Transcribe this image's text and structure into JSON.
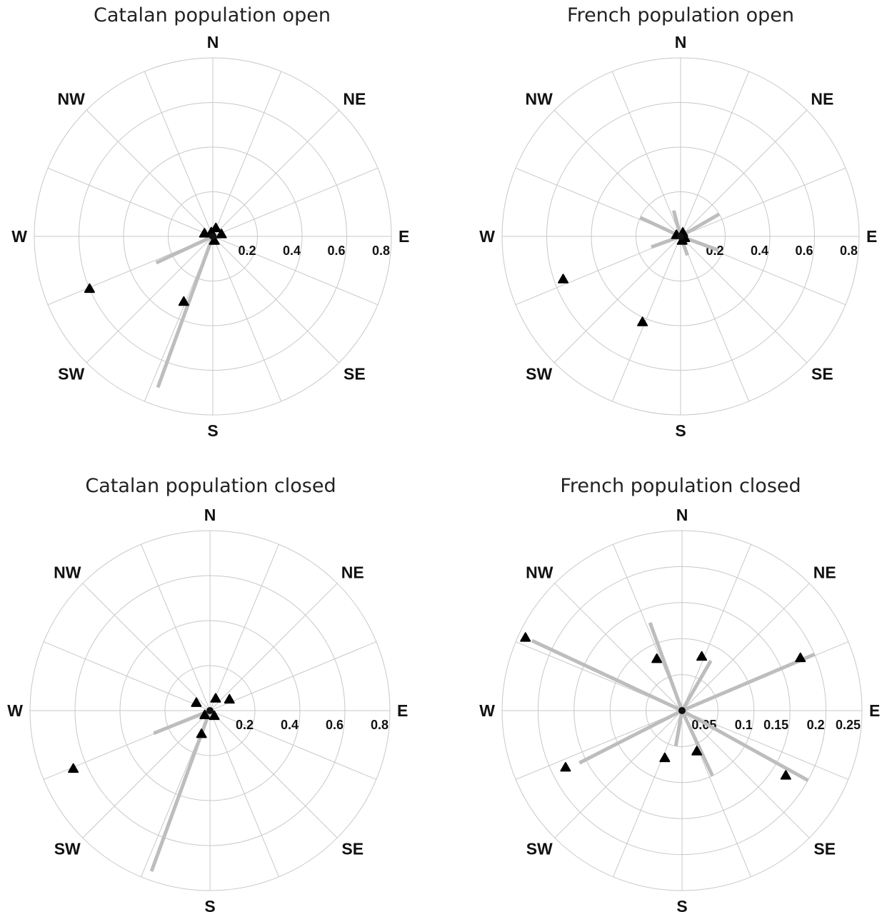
{
  "chart_data": [
    {
      "type": "polar",
      "title": "Catalan population open",
      "directions": [
        "N",
        "NE",
        "E",
        "SE",
        "S",
        "SW",
        "W",
        "NW"
      ],
      "rlim": [
        0,
        0.8
      ],
      "rticks": [
        "0.2",
        "0.4",
        "0.6",
        "0.8"
      ],
      "grid": true,
      "vectors": [
        {
          "angle_deg": 200,
          "r": 0.72
        },
        {
          "angle_deg": 245,
          "r": 0.28
        }
      ],
      "markers": [
        {
          "angle_deg": 247,
          "r": 0.6
        },
        {
          "angle_deg": 204,
          "r": 0.32
        },
        {
          "angle_deg": 20,
          "r": 0.04
        },
        {
          "angle_deg": 290,
          "r": 0.04
        },
        {
          "angle_deg": 75,
          "r": 0.04
        },
        {
          "angle_deg": 160,
          "r": 0.02
        },
        {
          "angle_deg": 340,
          "r": 0.02
        }
      ]
    },
    {
      "type": "polar",
      "title": "French population open",
      "directions": [
        "N",
        "NE",
        "E",
        "SE",
        "S",
        "SW",
        "W",
        "NW"
      ],
      "rlim": [
        0,
        0.8
      ],
      "rticks": [
        "0.2",
        "0.4",
        "0.6",
        "0.8"
      ],
      "grid": true,
      "vectors": [
        {
          "angle_deg": 345,
          "r": 0.12
        },
        {
          "angle_deg": 60,
          "r": 0.2
        },
        {
          "angle_deg": 110,
          "r": 0.18
        },
        {
          "angle_deg": 160,
          "r": 0.09
        },
        {
          "angle_deg": 250,
          "r": 0.14
        },
        {
          "angle_deg": 295,
          "r": 0.2
        }
      ],
      "markers": [
        {
          "angle_deg": 250,
          "r": 0.56
        },
        {
          "angle_deg": 204,
          "r": 0.42
        },
        {
          "angle_deg": 30,
          "r": 0.02
        },
        {
          "angle_deg": 110,
          "r": 0.02
        },
        {
          "angle_deg": 160,
          "r": 0.02
        },
        {
          "angle_deg": 290,
          "r": 0.02
        }
      ]
    },
    {
      "type": "polar",
      "title": "Catalan population closed",
      "directions": [
        "N",
        "NE",
        "E",
        "SE",
        "S",
        "SW",
        "W",
        "NW"
      ],
      "rlim": [
        0,
        0.8
      ],
      "rticks": [
        "0.2",
        "0.4",
        "0.6",
        "0.8"
      ],
      "grid": true,
      "vectors": [
        {
          "angle_deg": 200,
          "r": 0.76
        },
        {
          "angle_deg": 248,
          "r": 0.27
        }
      ],
      "markers": [
        {
          "angle_deg": 247,
          "r": 0.66
        },
        {
          "angle_deg": 200,
          "r": 0.11
        },
        {
          "angle_deg": 60,
          "r": 0.1
        },
        {
          "angle_deg": 300,
          "r": 0.07
        },
        {
          "angle_deg": 25,
          "r": 0.06
        },
        {
          "angle_deg": 140,
          "r": 0.03
        },
        {
          "angle_deg": 230,
          "r": 0.03
        }
      ]
    },
    {
      "type": "polar",
      "title": "French population closed",
      "directions": [
        "N",
        "NE",
        "E",
        "SE",
        "S",
        "SW",
        "W",
        "NW"
      ],
      "rlim": [
        0,
        0.25
      ],
      "rticks": [
        "0.05",
        "0.1",
        "0.15",
        "0.2",
        "0.25"
      ],
      "grid": true,
      "vectors": [
        {
          "angle_deg": 295,
          "r": 0.23
        },
        {
          "angle_deg": 67,
          "r": 0.2
        },
        {
          "angle_deg": 119,
          "r": 0.2
        },
        {
          "angle_deg": 243,
          "r": 0.16
        },
        {
          "angle_deg": 340,
          "r": 0.13
        },
        {
          "angle_deg": 155,
          "r": 0.1
        },
        {
          "angle_deg": 190,
          "r": 0.05
        },
        {
          "angle_deg": 30,
          "r": 0.08
        }
      ],
      "markers": [
        {
          "angle_deg": 295,
          "r": 0.24
        },
        {
          "angle_deg": 66,
          "r": 0.18
        },
        {
          "angle_deg": 122,
          "r": 0.17
        },
        {
          "angle_deg": 244,
          "r": 0.18
        },
        {
          "angle_deg": 334,
          "r": 0.08
        },
        {
          "angle_deg": 20,
          "r": 0.08
        },
        {
          "angle_deg": 160,
          "r": 0.06
        },
        {
          "angle_deg": 200,
          "r": 0.07
        }
      ]
    }
  ]
}
